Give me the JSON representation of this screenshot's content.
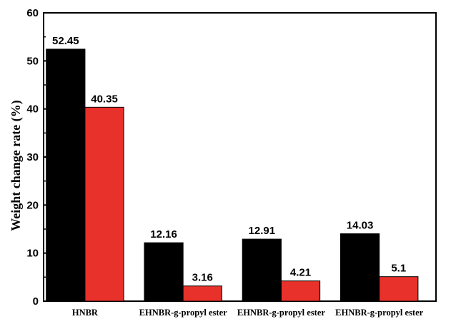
{
  "chart_data": {
    "type": "bar",
    "title": "",
    "xlabel": "",
    "ylabel": "Weight change rate (%)",
    "ylim": [
      0,
      60
    ],
    "yticks": [
      0,
      10,
      20,
      30,
      40,
      50,
      60
    ],
    "grid": false,
    "legend": "none",
    "categories": [
      "HNBR",
      "EHNBR-g-propyl ester",
      "EHNBR-g-propyl ester",
      "EHNBR-g-propyl ester"
    ],
    "series": [
      {
        "color": "#000000",
        "values": [
          52.45,
          12.16,
          12.91,
          14.03
        ],
        "labels": [
          "52.45",
          "12.16",
          "12.91",
          "14.03"
        ]
      },
      {
        "color": "#e8312a",
        "values": [
          40.35,
          3.16,
          4.21,
          5.1
        ],
        "labels": [
          "40.35",
          "3.16",
          "4.21",
          "5.1"
        ]
      }
    ]
  }
}
